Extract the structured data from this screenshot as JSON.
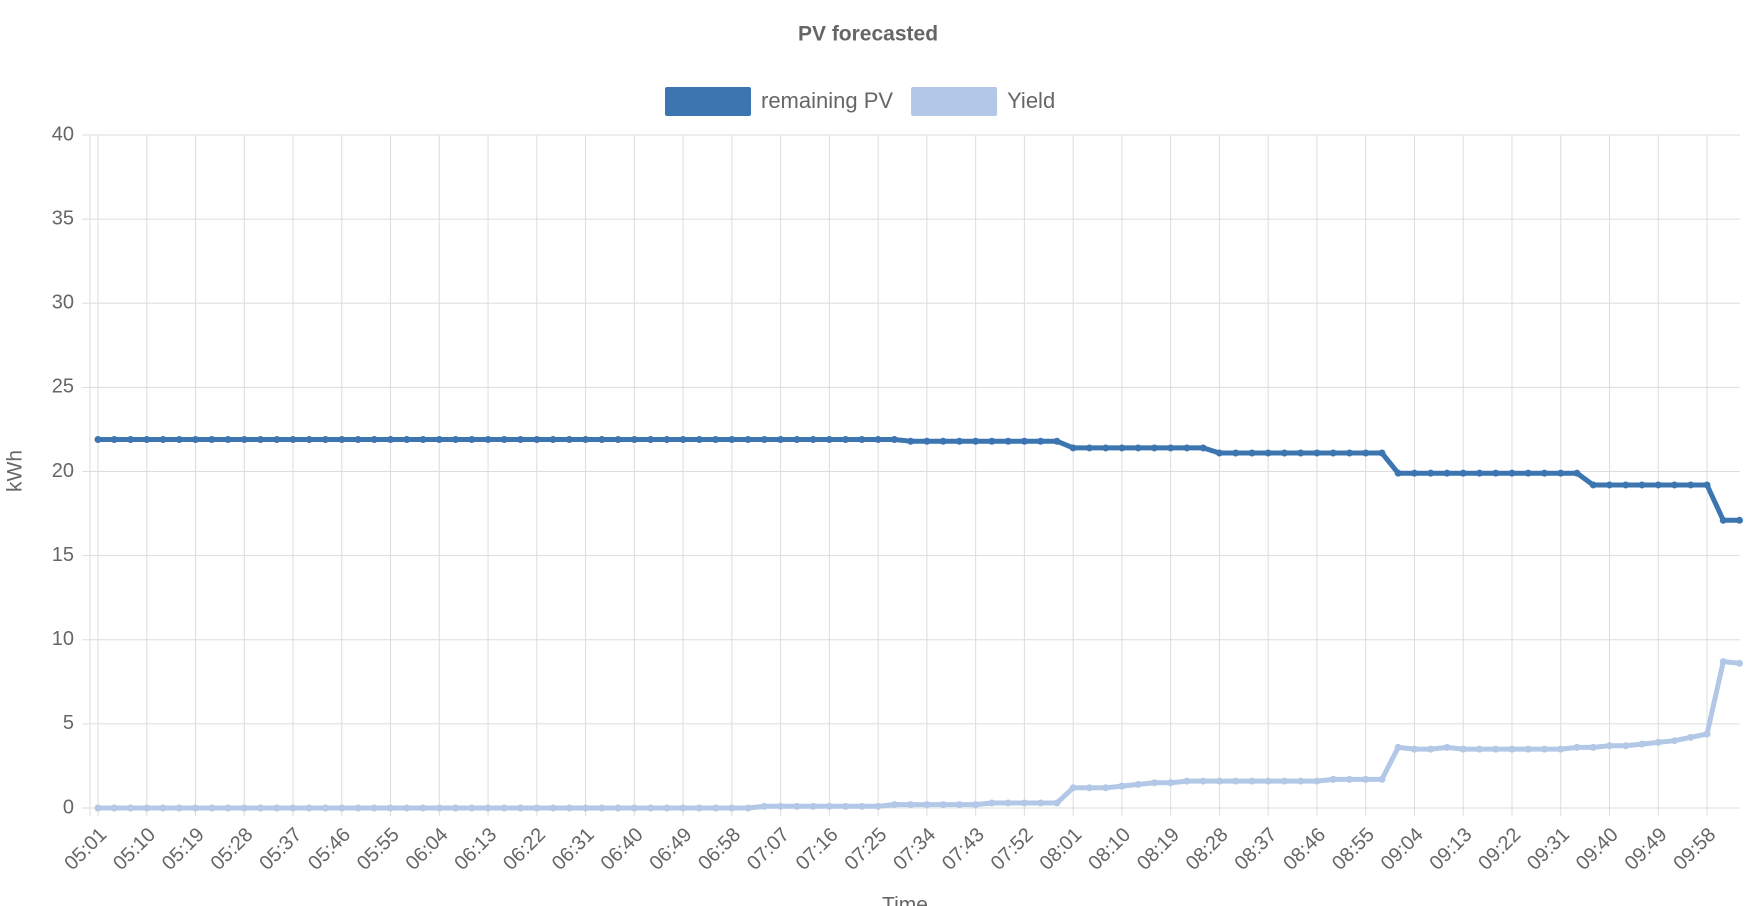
{
  "chart_data": {
    "type": "line",
    "title": "PV forecasted",
    "y_label": "kWh",
    "x_label": "Time",
    "categories": [
      "05:01",
      null,
      null,
      "05:10",
      null,
      null,
      "05:19",
      null,
      null,
      "05:28",
      null,
      null,
      "05:37",
      null,
      null,
      "05:46",
      null,
      null,
      "05:55",
      null,
      null,
      "06:04",
      null,
      null,
      "06:13",
      null,
      null,
      "06:22",
      null,
      null,
      "06:31",
      null,
      null,
      "06:40",
      null,
      null,
      "06:49",
      null,
      null,
      "06:58",
      null,
      null,
      "07:07",
      null,
      null,
      "07:16",
      null,
      null,
      "07:25",
      null,
      null,
      "07:34",
      null,
      null,
      "07:43",
      null,
      null,
      "07:52",
      null,
      null,
      "08:01",
      null,
      null,
      "08:10",
      null,
      null,
      "08:19",
      null,
      null,
      "08:28",
      null,
      null,
      "08:37",
      null,
      null,
      "08:46",
      null,
      null,
      "08:55",
      null,
      null,
      "09:04",
      null,
      null,
      "09:13",
      null,
      null,
      "09:22",
      null,
      null,
      "09:31",
      null,
      null,
      "09:40",
      null,
      null,
      "09:49",
      null,
      null,
      "09:58",
      null,
      null
    ],
    "series": [
      {
        "name": "remaining PV",
        "color": "#3c75b0",
        "values": [
          21.9,
          21.9,
          21.9,
          21.9,
          21.9,
          21.9,
          21.9,
          21.9,
          21.9,
          21.9,
          21.9,
          21.9,
          21.9,
          21.9,
          21.9,
          21.9,
          21.9,
          21.9,
          21.9,
          21.9,
          21.9,
          21.9,
          21.9,
          21.9,
          21.9,
          21.9,
          21.9,
          21.9,
          21.9,
          21.9,
          21.9,
          21.9,
          21.9,
          21.9,
          21.9,
          21.9,
          21.9,
          21.9,
          21.9,
          21.9,
          21.9,
          21.9,
          21.9,
          21.9,
          21.9,
          21.9,
          21.9,
          21.9,
          21.9,
          21.9,
          21.8,
          21.8,
          21.8,
          21.8,
          21.8,
          21.8,
          21.8,
          21.8,
          21.8,
          21.8,
          21.4,
          21.4,
          21.4,
          21.4,
          21.4,
          21.4,
          21.4,
          21.4,
          21.4,
          21.1,
          21.1,
          21.1,
          21.1,
          21.1,
          21.1,
          21.1,
          21.1,
          21.1,
          21.1,
          21.1,
          19.9,
          19.9,
          19.9,
          19.9,
          19.9,
          19.9,
          19.9,
          19.9,
          19.9,
          19.9,
          19.9,
          19.9,
          19.2,
          19.2,
          19.2,
          19.2,
          19.2,
          19.2,
          19.2,
          19.2,
          17.1,
          17.1
        ]
      },
      {
        "name": "Yield",
        "color": "#b3c7e6",
        "values": [
          0,
          0,
          0,
          0,
          0,
          0,
          0,
          0,
          0,
          0,
          0,
          0,
          0,
          0,
          0,
          0,
          0,
          0,
          0,
          0,
          0,
          0,
          0,
          0,
          0,
          0,
          0,
          0,
          0,
          0,
          0,
          0,
          0,
          0,
          0,
          0,
          0,
          0,
          0,
          0,
          0,
          0.1,
          0.1,
          0.1,
          0.1,
          0.1,
          0.1,
          0.1,
          0.1,
          0.2,
          0.2,
          0.2,
          0.2,
          0.2,
          0.2,
          0.3,
          0.3,
          0.3,
          0.3,
          0.3,
          1.2,
          1.2,
          1.2,
          1.3,
          1.4,
          1.5,
          1.5,
          1.6,
          1.6,
          1.6,
          1.6,
          1.6,
          1.6,
          1.6,
          1.6,
          1.6,
          1.7,
          1.7,
          1.7,
          1.7,
          3.6,
          3.5,
          3.5,
          3.6,
          3.5,
          3.5,
          3.5,
          3.5,
          3.5,
          3.5,
          3.5,
          3.6,
          3.6,
          3.7,
          3.7,
          3.8,
          3.9,
          4.0,
          4.2,
          4.4,
          8.7,
          8.6
        ]
      }
    ],
    "ylim": [
      0,
      40
    ],
    "yticks": [
      0,
      5,
      10,
      15,
      20,
      25,
      30,
      35,
      40
    ],
    "grid": true,
    "legend": "top"
  }
}
